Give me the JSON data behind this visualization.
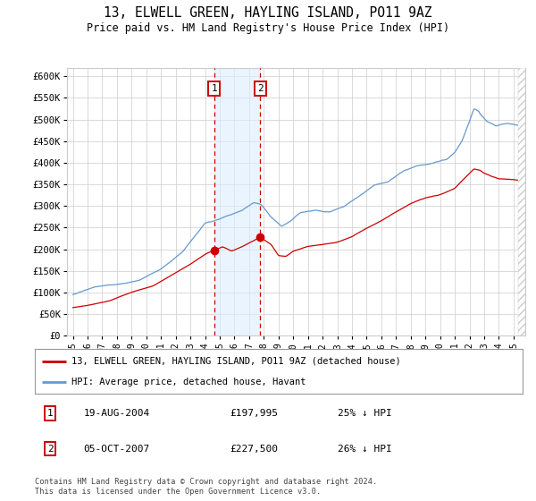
{
  "title": "13, ELWELL GREEN, HAYLING ISLAND, PO11 9AZ",
  "subtitle": "Price paid vs. HM Land Registry's House Price Index (HPI)",
  "ylabel_ticks": [
    "£0",
    "£50K",
    "£100K",
    "£150K",
    "£200K",
    "£250K",
    "£300K",
    "£350K",
    "£400K",
    "£450K",
    "£500K",
    "£550K",
    "£600K"
  ],
  "ytick_vals": [
    0,
    50000,
    100000,
    150000,
    200000,
    250000,
    300000,
    350000,
    400000,
    450000,
    500000,
    550000,
    600000
  ],
  "ylim": [
    0,
    620000
  ],
  "xlim_start": 1994.6,
  "xlim_end": 2025.8,
  "transaction1_date": 2004.63,
  "transaction1_price": 197995,
  "transaction2_date": 2007.76,
  "transaction2_price": 227500,
  "legend_line1": "13, ELWELL GREEN, HAYLING ISLAND, PO11 9AZ (detached house)",
  "legend_line2": "HPI: Average price, detached house, Havant",
  "footer": "Contains HM Land Registry data © Crown copyright and database right 2024.\nThis data is licensed under the Open Government Licence v3.0.",
  "line_color_red": "#cc0000",
  "line_color_blue": "#6699cc",
  "shade_color": "#ddeeff",
  "background_color": "#ffffff",
  "grid_color": "#cccccc"
}
